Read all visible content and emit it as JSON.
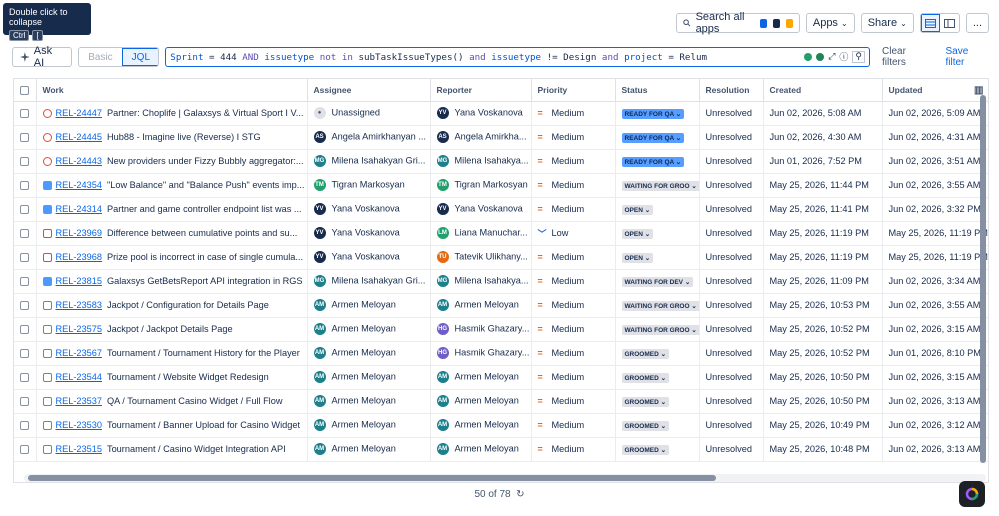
{
  "tooltip": {
    "text": "Double click to collapse",
    "keys": [
      "Ctrl",
      "["
    ]
  },
  "toolbar": {
    "search_placeholder": "Search all apps",
    "apps": "Apps",
    "share": "Share",
    "more": "..."
  },
  "jql": {
    "ask_ai": "Ask AI",
    "basic": "Basic",
    "mode": "JQL",
    "query_tokens": [
      [
        "fld",
        "Sprint"
      ],
      [
        "op",
        " = 444 "
      ],
      [
        "kw",
        "AND"
      ],
      [
        "op",
        " "
      ],
      [
        "fld",
        "issuetype"
      ],
      [
        "op",
        " "
      ],
      [
        "kw",
        "not in"
      ],
      [
        "op",
        " subTaskIssueTypes() "
      ],
      [
        "kw",
        "and"
      ],
      [
        "op",
        " "
      ],
      [
        "fld",
        "issuetype"
      ],
      [
        "op",
        " != Design "
      ],
      [
        "kw",
        "and"
      ],
      [
        "op",
        " "
      ],
      [
        "fld",
        "project"
      ],
      [
        "op",
        " = Relum"
      ]
    ],
    "clear": "Clear filters",
    "save": "Save filter"
  },
  "table": {
    "headers": [
      "Work",
      "Assignee",
      "Reporter",
      "Priority",
      "Status",
      "Resolution",
      "Created",
      "Updated"
    ],
    "rows": [
      {
        "type": "epic",
        "key": "REL-24447",
        "summary": "Partner: Choplife | Galaxsys & Virtual Sport I V...",
        "assignee": "Unassigned",
        "a_init": "",
        "a_color": "#c1c7d0",
        "reporter": "Yana Voskanova",
        "r_init": "YV",
        "r_color": "#172b4d",
        "priority": "Medium",
        "status": "READY FOR QA",
        "s_class": "qa",
        "resolution": "Unresolved",
        "created": "Jun 02, 2026, 5:08 AM",
        "updated": "Jun 02, 2026, 5:09 AM"
      },
      {
        "type": "epic",
        "key": "REL-24445",
        "summary": "Hub88 - Imagine live (Reverse) I STG",
        "assignee": "Angela Amirkhanyan ...",
        "a_init": "AS",
        "a_color": "#172b4d",
        "reporter": "Angela Amirkha...",
        "r_init": "AS",
        "r_color": "#172b4d",
        "priority": "Medium",
        "status": "READY FOR QA",
        "s_class": "qa",
        "resolution": "Unresolved",
        "created": "Jun 02, 2026, 4:30 AM",
        "updated": "Jun 02, 2026, 4:31 AM"
      },
      {
        "type": "epic",
        "key": "REL-24443",
        "summary": "New providers under Fizzy Bubbly aggregator:...",
        "assignee": "Milena Isahakyan Gri...",
        "a_init": "MG",
        "a_color": "#1d7f8c",
        "reporter": "Milena Isahakya...",
        "r_init": "MG",
        "r_color": "#1d7f8c",
        "priority": "Medium",
        "status": "READY FOR QA",
        "s_class": "qa",
        "resolution": "Unresolved",
        "created": "Jun 01, 2026, 7:52 PM",
        "updated": "Jun 02, 2026, 3:51 AM"
      },
      {
        "type": "task",
        "key": "REL-24354",
        "summary": "\"Low Balance\" and \"Balance Push\" events imp...",
        "assignee": "Tigran Markosyan",
        "a_init": "TM",
        "a_color": "#22a06b",
        "reporter": "Tigran Markosyan",
        "r_init": "TM",
        "r_color": "#22a06b",
        "priority": "Medium",
        "status": "WAITING FOR GROO",
        "s_class": "",
        "resolution": "Unresolved",
        "created": "May 25, 2026, 11:44 PM",
        "updated": "Jun 02, 2026, 3:55 AM"
      },
      {
        "type": "task",
        "key": "REL-24314",
        "summary": "Partner and game controller endpoint list was ...",
        "assignee": "Yana Voskanova",
        "a_init": "YV",
        "a_color": "#172b4d",
        "reporter": "Yana Voskanova",
        "r_init": "YV",
        "r_color": "#172b4d",
        "priority": "Medium",
        "status": "OPEN",
        "s_class": "",
        "resolution": "Unresolved",
        "created": "May 25, 2026, 11:41 PM",
        "updated": "Jun 02, 2026, 3:32 PM"
      },
      {
        "type": "bug",
        "key": "REL-23969",
        "summary": "Difference between cumulative points and su...",
        "assignee": "Yana Voskanova",
        "a_init": "YV",
        "a_color": "#172b4d",
        "reporter": "Liana Manuchar...",
        "r_init": "LM",
        "r_color": "#22a06b",
        "priority": "Low",
        "status": "OPEN",
        "s_class": "",
        "resolution": "Unresolved",
        "created": "May 25, 2026, 11:19 PM",
        "updated": "May 25, 2026, 11:19 PM"
      },
      {
        "type": "bug",
        "key": "REL-23968",
        "summary": "Prize pool is incorrect in case of single cumula...",
        "assignee": "Yana Voskanova",
        "a_init": "YV",
        "a_color": "#172b4d",
        "reporter": "Tatevik Ulikhany...",
        "r_init": "TU",
        "r_color": "#e56910",
        "priority": "Medium",
        "status": "OPEN",
        "s_class": "",
        "resolution": "Unresolved",
        "created": "May 25, 2026, 11:19 PM",
        "updated": "May 25, 2026, 11:19 PM"
      },
      {
        "type": "task",
        "key": "REL-23815",
        "summary": "Galaxsys GetBetsReport API integration in RGS",
        "assignee": "Milena Isahakyan Gri...",
        "a_init": "MG",
        "a_color": "#1d7f8c",
        "reporter": "Milena Isahakya...",
        "r_init": "MG",
        "r_color": "#1d7f8c",
        "priority": "Medium",
        "status": "WAITING FOR DEV",
        "s_class": "",
        "resolution": "Unresolved",
        "created": "May 25, 2026, 11:09 PM",
        "updated": "Jun 02, 2026, 3:34 AM"
      },
      {
        "type": "story",
        "key": "REL-23583",
        "summary": "Jackpot / Configuration for Details Page",
        "assignee": "Armen Meloyan",
        "a_init": "AM",
        "a_color": "#1d7f8c",
        "reporter": "Armen Meloyan",
        "r_init": "AM",
        "r_color": "#1d7f8c",
        "priority": "Medium",
        "status": "WAITING FOR GROO",
        "s_class": "",
        "resolution": "Unresolved",
        "created": "May 25, 2026, 10:53 PM",
        "updated": "Jun 02, 2026, 3:55 AM"
      },
      {
        "type": "story",
        "key": "REL-23575",
        "summary": "Jackpot / Jackpot Details Page",
        "assignee": "Armen Meloyan",
        "a_init": "AM",
        "a_color": "#1d7f8c",
        "reporter": "Hasmik Ghazary...",
        "r_init": "HG",
        "r_color": "#6e5dc6",
        "priority": "Medium",
        "status": "WAITING FOR GROO",
        "s_class": "",
        "resolution": "Unresolved",
        "created": "May 25, 2026, 10:52 PM",
        "updated": "Jun 02, 2026, 3:15 AM"
      },
      {
        "type": "story",
        "key": "REL-23567",
        "summary": "Tournament / Tournament History for the Player",
        "assignee": "Armen Meloyan",
        "a_init": "AM",
        "a_color": "#1d7f8c",
        "reporter": "Hasmik Ghazary...",
        "r_init": "HG",
        "r_color": "#6e5dc6",
        "priority": "Medium",
        "status": "GROOMED",
        "s_class": "",
        "resolution": "Unresolved",
        "created": "May 25, 2026, 10:52 PM",
        "updated": "Jun 01, 2026, 8:10 PM"
      },
      {
        "type": "story",
        "key": "REL-23544",
        "summary": "Tournament / Website Widget Redesign",
        "assignee": "Armen Meloyan",
        "a_init": "AM",
        "a_color": "#1d7f8c",
        "reporter": "Armen Meloyan",
        "r_init": "AM",
        "r_color": "#1d7f8c",
        "priority": "Medium",
        "status": "GROOMED",
        "s_class": "",
        "resolution": "Unresolved",
        "created": "May 25, 2026, 10:50 PM",
        "updated": "Jun 02, 2026, 3:15 AM"
      },
      {
        "type": "story",
        "key": "REL-23537",
        "summary": "QA / Tournament Casino Widget / Full Flow",
        "assignee": "Armen Meloyan",
        "a_init": "AM",
        "a_color": "#1d7f8c",
        "reporter": "Armen Meloyan",
        "r_init": "AM",
        "r_color": "#1d7f8c",
        "priority": "Medium",
        "status": "GROOMED",
        "s_class": "",
        "resolution": "Unresolved",
        "created": "May 25, 2026, 10:50 PM",
        "updated": "Jun 02, 2026, 3:13 AM"
      },
      {
        "type": "story",
        "key": "REL-23530",
        "summary": "Tournament / Banner Upload for Casino Widget",
        "assignee": "Armen Meloyan",
        "a_init": "AM",
        "a_color": "#1d7f8c",
        "reporter": "Armen Meloyan",
        "r_init": "AM",
        "r_color": "#1d7f8c",
        "priority": "Medium",
        "status": "GROOMED",
        "s_class": "",
        "resolution": "Unresolved",
        "created": "May 25, 2026, 10:49 PM",
        "updated": "Jun 02, 2026, 3:12 AM"
      },
      {
        "type": "story",
        "key": "REL-23515",
        "summary": "Tournament / Casino Widget Integration API",
        "assignee": "Armen Meloyan",
        "a_init": "AM",
        "a_color": "#1d7f8c",
        "reporter": "Armen Meloyan",
        "r_init": "AM",
        "r_color": "#1d7f8c",
        "priority": "Medium",
        "status": "GROOMED",
        "s_class": "",
        "resolution": "Unresolved",
        "created": "May 25, 2026, 10:48 PM",
        "updated": "Jun 02, 2026, 3:13 AM"
      }
    ]
  },
  "footer": {
    "count": "50 of 78"
  },
  "colors": {
    "accent": "#0c66e4",
    "qa_status": "#579dff"
  }
}
